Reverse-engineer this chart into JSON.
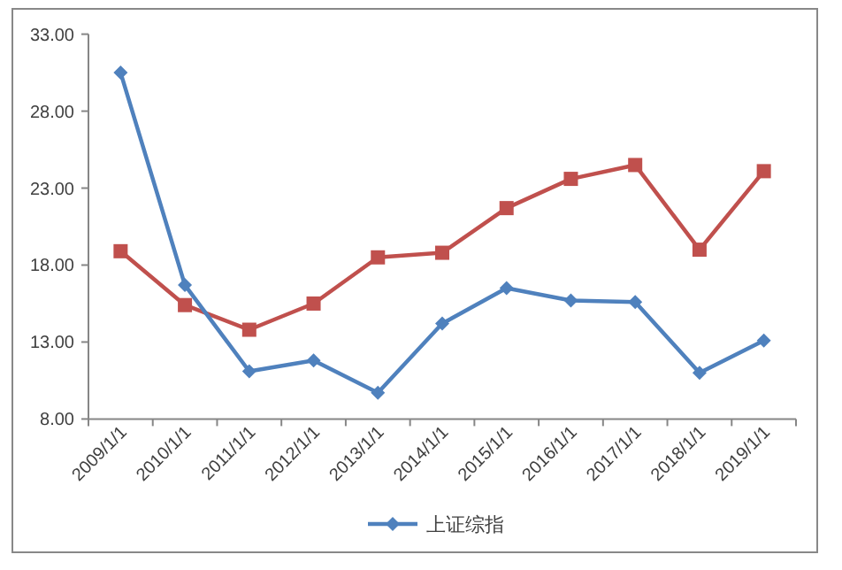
{
  "chart_data": {
    "type": "line",
    "categories": [
      "2009/1/1",
      "2010/1/1",
      "2011/1/1",
      "2012/1/1",
      "2013/1/1",
      "2014/1/1",
      "2015/1/1",
      "2016/1/1",
      "2017/1/1",
      "2018/1/1",
      "2019/1/1"
    ],
    "series": [
      {
        "color": "#c0504d",
        "marker": "square",
        "values": [
          18.9,
          15.4,
          13.8,
          15.5,
          18.5,
          18.8,
          21.7,
          23.6,
          24.5,
          19.0,
          24.1
        ]
      },
      {
        "name": "上证综指",
        "color": "#4f81bd",
        "marker": "diamond",
        "values": [
          30.5,
          16.7,
          11.1,
          11.8,
          9.7,
          14.2,
          16.5,
          15.7,
          15.6,
          11.0,
          13.1
        ]
      }
    ],
    "ylim": [
      8,
      33
    ],
    "yticks": [
      {
        "value": 8,
        "label": "8.00"
      },
      {
        "value": 13,
        "label": "13.00"
      },
      {
        "value": 18,
        "label": "18.00"
      },
      {
        "value": 23,
        "label": "23.00"
      },
      {
        "value": 28,
        "label": "28.00"
      },
      {
        "value": 33,
        "label": "33.00"
      }
    ],
    "legend": "bottom"
  }
}
